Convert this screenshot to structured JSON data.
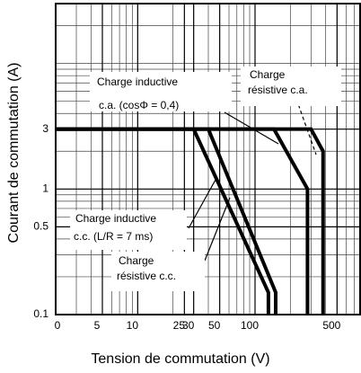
{
  "chart_data": {
    "type": "line",
    "xlabel": "Tension de commutation (V)",
    "ylabel": "Courant de commutation (A)",
    "x_origin_label": "0",
    "xscale": "log",
    "yscale": "log",
    "grid": true,
    "xlim": [
      2,
      800
    ],
    "ylim": [
      0.1,
      30
    ],
    "xticks": [
      5,
      10,
      25,
      30,
      50,
      100,
      500
    ],
    "yticks": [
      0.1,
      0.5,
      1,
      3
    ],
    "series": [
      {
        "label": [
          "Charge",
          "résistive c.a."
        ],
        "color": "#000000",
        "x": [
          2,
          300,
          380,
          380
        ],
        "values": [
          3,
          3,
          2,
          0.1
        ]
      },
      {
        "label": [
          "Charge inductive",
          "c.a. (cosΦ = 0,4)"
        ],
        "color": "#000000",
        "x": [
          2,
          145,
          280,
          280
        ],
        "values": [
          3,
          3,
          1,
          0.1
        ]
      },
      {
        "label": [
          "Charge inductive",
          "c.c. (L/R = 7 ms)"
        ],
        "color": "#000000",
        "x": [
          2,
          30,
          130,
          130
        ],
        "values": [
          3,
          3,
          0.15,
          0.1
        ]
      },
      {
        "label": [
          "Charge",
          "résistive c.c."
        ],
        "color": "#000000",
        "x": [
          2,
          40,
          150,
          150
        ],
        "values": [
          3,
          3,
          0.15,
          0.1
        ]
      }
    ]
  }
}
